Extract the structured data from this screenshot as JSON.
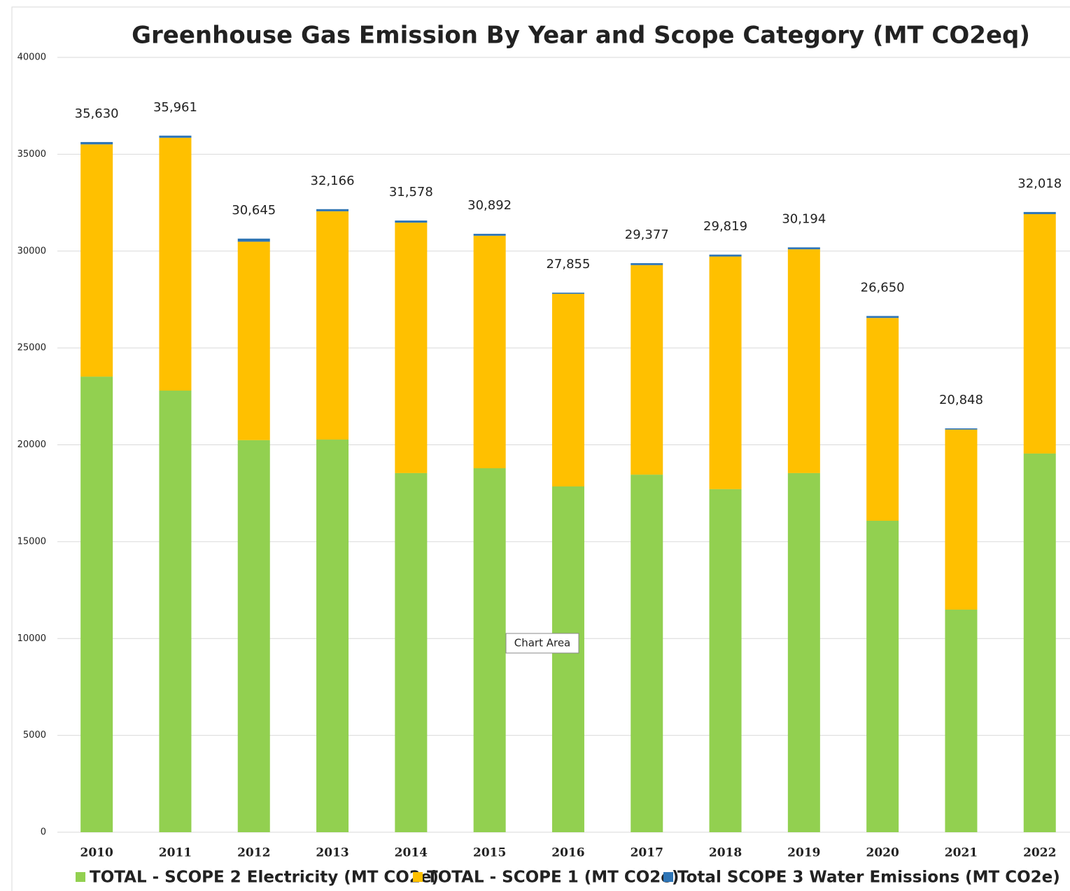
{
  "chart_data": {
    "type": "stacked_bar",
    "title": "Greenhouse Gas Emission By Year and Scope Category (MT CO2eq)",
    "categories": [
      "2010",
      "2011",
      "2012",
      "2013",
      "2014",
      "2015",
      "2016",
      "2017",
      "2018",
      "2019",
      "2020",
      "2021",
      "2022"
    ],
    "series": [
      {
        "name": "TOTAL - SCOPE 2 Electricity (MT CO2e)",
        "color": "#92d050",
        "values": [
          23520,
          22800,
          20240,
          20270,
          18540,
          18790,
          17850,
          18460,
          17710,
          18540,
          16080,
          11490,
          19550
        ]
      },
      {
        "name": "TOTAL - SCOPE 1 (MT CO2e)",
        "color": "#ffc000",
        "values": [
          11990,
          13051,
          10245,
          11786,
          12928,
          12002,
          9945,
          10817,
          12009,
          11554,
          10470,
          9298,
          12358
        ]
      },
      {
        "name": "Total SCOPE 3 Water Emissions (MT CO2e)",
        "color": "#2e75b6",
        "values": [
          120,
          110,
          160,
          110,
          110,
          100,
          60,
          100,
          100,
          100,
          100,
          60,
          110
        ]
      }
    ],
    "totals": [
      35630,
      35961,
      30645,
      32166,
      31578,
      30892,
      27855,
      29377,
      29819,
      30194,
      26650,
      20848,
      32018
    ],
    "total_labels": [
      "35,630",
      "35,961",
      "30,645",
      "32,166",
      "31,578",
      "30,892",
      "27,855",
      "29,377",
      "29,819",
      "30,194",
      "26,650",
      "20,848",
      "32,018"
    ],
    "ylim": [
      0,
      40000
    ],
    "yticks": [
      0,
      5000,
      10000,
      15000,
      20000,
      25000,
      30000,
      35000,
      40000
    ],
    "grid": true,
    "legend": "bottom",
    "tooltip": "Chart Area"
  }
}
